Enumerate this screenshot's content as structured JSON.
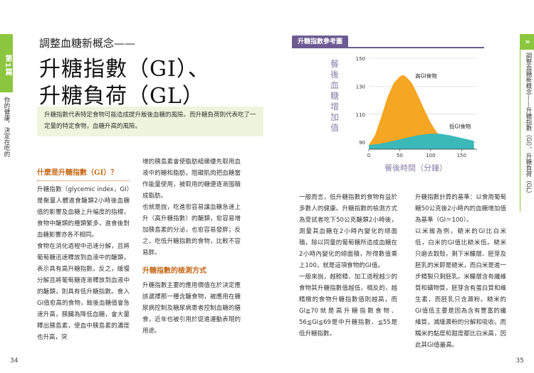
{
  "left_page": {
    "tab_chapter": "第1篇",
    "tab_topic": "你的健康，決定在吃的食物份量！",
    "kicker": "調整血糖新概念——",
    "title_line1": "升糖指數（GI）、",
    "title_line2": "升糖負荷（GL）",
    "intro": "升糖指數代表特定食物可能造成提升飯後血糖的風險。而升糖負荷則代表吃了一定量的特定食物，血糖升高的風險。",
    "section1_heading": "什麼是升糖指數（GI）？",
    "col1_p1": "升糖指數（glycemic index，GI）是衡量人體進食醣類2小時後血糖值的影響及血糖上升幅度的指標，食物中醣類的種類繁多，進食後對血糖影響亦各不相同。",
    "col1_p2": "食物在消化過程中迅速分解，且將葡萄糖迅速釋放到血液中的醣類，表示具有高升糖指數。反之，緩慢分解且將葡萄糖逐漸釋放到血液中的醣類，則具有低升糖指數。食入GI值愈高的食物，飯後血糖值會急速升高，胰臟為降低血糖，會大量釋出胰島素，使血中胰島素的濃度也升高，突",
    "col2_p1": "增的胰島素會使脂肪組織優先取用血液中的糖和脂肪，阻礙肌肉把血糖當作能量使用，被取用的糖便逐漸囤積成脂肪。",
    "col2_p2": "也就是說，吃進愈容易讓血糖急速上升（高升糖指數）的醣類，愈容易增加胰島素的分泌，也愈容易發胖；反之，吃低升糖指數的食物，比較不容易胖。",
    "section2_heading": "升糖指數的檢測方式",
    "col2_p3": "升糖指數主要的應用價值在於決定應該選擇那一種含醣食物，被應用在糖尿病控制及糖尿病患者控制血糖的膳食，近年也被引用於促進運動表現的用途。",
    "page_number": "34"
  },
  "right_page": {
    "tab_arrow": "»",
    "tab_text": "調整血糖新概念——升糖指數（GI）、升糖負荷（GL）",
    "col3_p1": "一般而言，低升糖指數的食物有益於多數人的健康。升糖指數的檢測方式為受試者吃下50公克醣類2小時後，測量其血糖在2小時內變化的總面積，除以同量的葡萄糖所造成血糖在2小時內變化的總面積，所得數值乘上100，就是這項食物的GI值。",
    "col3_p2": "一般來說，越輕精、加工過程越少的食物其升糖指數值越低，相反的，越精緻的食物升糖指數值則越高，而GI≧70就是高升糖指數食物、56≦GI≦69是中升糖指數、≦55是低升糖指數。",
    "col4_p1": "升糖指數計算的基準：以食用葡萄糖50公克後2小時內的血糖增加值為基準（GI＝100）。",
    "col4_p2": "以米飯為例，糙米的GI比白米低，白米的GI值比糙米低。糙米只磨去穀殼，剩下米糠層、胚芽及胚乳的米即是糙米，而白米是進一步精製只剩胚乳。米糠層含有纖維質和礦物質，胚芽含有蛋白質和維生素，而胚乳只含澱粉。糙米的GI值低主要是因為含有豐富的纖維質，減緩澱粉的分解和吸收。而糯米的黏度和甜度都比白米高，因此其GI值最高。",
    "page_number": "35"
  },
  "chart_data": {
    "type": "area",
    "title": "升糖指數參考圖",
    "ylabel": "餐後血糖增加值",
    "xlabel": "餐後時間（分鐘）",
    "x_ticks": [
      0,
      50,
      100,
      150
    ],
    "y_ticks": [
      90,
      110,
      130,
      150
    ],
    "xlim": [
      0,
      175
    ],
    "ylim": [
      85,
      150
    ],
    "series": [
      {
        "name": "高GI食物",
        "color": "#f5a623",
        "x": [
          -5,
          0,
          10,
          20,
          30,
          40,
          50,
          55,
          60,
          70,
          80,
          90,
          100,
          110,
          120,
          130,
          140,
          150,
          160,
          170
        ],
        "values": [
          87,
          88,
          95,
          108,
          122,
          132,
          137,
          138,
          137,
          132,
          123,
          113,
          104,
          97,
          93,
          91,
          90,
          89,
          89,
          88
        ]
      },
      {
        "name": "低GI食物",
        "color": "#3bb9b9",
        "x": [
          -5,
          0,
          20,
          40,
          60,
          80,
          100,
          115,
          130,
          150,
          170
        ],
        "values": [
          87,
          88,
          89,
          91,
          93,
          95,
          96,
          96,
          95,
          93,
          91
        ]
      }
    ]
  }
}
